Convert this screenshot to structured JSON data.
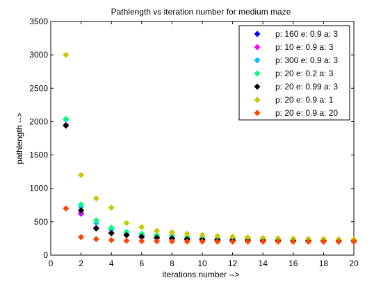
{
  "chart_data": {
    "type": "scatter",
    "title": "Pathlength vs iteration number for medium maze",
    "xlabel": "iterations number -->",
    "ylabel": "pathlength -->",
    "xlim": [
      0,
      20
    ],
    "ylim": [
      0,
      3500
    ],
    "xticks": [
      0,
      2,
      4,
      6,
      8,
      10,
      12,
      14,
      16,
      18,
      20
    ],
    "yticks": [
      0,
      500,
      1000,
      1500,
      2000,
      2500,
      3000,
      3500
    ],
    "grid": false,
    "legend_position": "top-right",
    "marker": "diamond",
    "x": [
      1,
      2,
      3,
      4,
      5,
      6,
      7,
      8,
      9,
      10,
      11,
      12,
      13,
      14,
      15,
      16,
      17,
      18,
      19,
      20
    ],
    "series": [
      {
        "name": "p: 160 e: 0.9 a: 3",
        "color": "#0000ff",
        "values": [
          1950,
          620,
          400,
          330,
          300,
          270,
          255,
          245,
          235,
          230,
          225,
          222,
          220,
          218,
          216,
          215,
          214,
          213,
          212,
          211
        ]
      },
      {
        "name": "p: 10 e: 0.9 a: 3",
        "color": "#ff00ff",
        "values": [
          1950,
          630,
          410,
          335,
          300,
          272,
          256,
          246,
          236,
          231,
          226,
          223,
          220,
          218,
          216,
          215,
          214,
          213,
          212,
          211
        ]
      },
      {
        "name": "p: 300 e: 0.9 a: 3",
        "color": "#00bfff",
        "values": [
          2030,
          720,
          480,
          380,
          330,
          300,
          275,
          260,
          250,
          240,
          235,
          230,
          228,
          225,
          222,
          220,
          219,
          218,
          217,
          216
        ]
      },
      {
        "name": "p: 20 e: 0.2 a: 3",
        "color": "#00ff7f",
        "values": [
          2040,
          760,
          520,
          410,
          350,
          320,
          300,
          285,
          272,
          260,
          252,
          246,
          240,
          236,
          232,
          229,
          227,
          225,
          223,
          221
        ]
      },
      {
        "name": "p: 20 e: 0.99 a: 3",
        "color": "#000000",
        "values": [
          1940,
          670,
          400,
          330,
          300,
          275,
          260,
          250,
          240,
          235,
          230,
          226,
          223,
          220,
          218,
          216,
          215,
          214,
          213,
          212
        ]
      },
      {
        "name": "p: 20 e: 0.9 a: 1",
        "color": "#c8c800",
        "values": [
          3000,
          1200,
          850,
          710,
          480,
          420,
          365,
          340,
          320,
          300,
          285,
          275,
          265,
          258,
          252,
          247,
          243,
          240,
          237,
          235
        ]
      },
      {
        "name": "p: 20 e: 0.9 a: 20",
        "color": "#ff4500",
        "values": [
          700,
          270,
          240,
          225,
          215,
          210,
          208,
          206,
          205,
          204,
          203,
          203,
          202,
          202,
          202,
          201,
          201,
          201,
          201,
          201
        ]
      }
    ]
  }
}
